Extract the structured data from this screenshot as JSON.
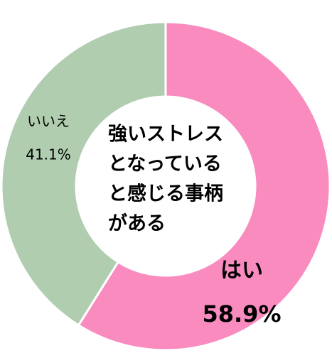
{
  "chart_data": {
    "type": "donut",
    "title": [
      "強いストレス",
      "となっている",
      "と感じる事柄",
      "がある"
    ],
    "categories": [
      "はい",
      "いいえ"
    ],
    "values": [
      58.9,
      41.1
    ],
    "value_labels": [
      "58.9%",
      "41.1%"
    ],
    "colors": [
      "#f98bbf",
      "#b0cdb0"
    ]
  }
}
